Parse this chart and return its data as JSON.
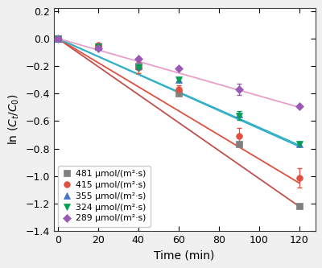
{
  "title": "",
  "xlabel": "Time (min)",
  "ylabel": "ln ($C_t$/$C_0$)",
  "xlim": [
    -2,
    128
  ],
  "ylim": [
    -1.4,
    0.22
  ],
  "xticks": [
    0,
    20,
    40,
    60,
    80,
    100,
    120
  ],
  "yticks": [
    0.2,
    0.0,
    -0.2,
    -0.4,
    -0.6,
    -0.8,
    -1.0,
    -1.2,
    -1.4
  ],
  "series": [
    {
      "label": "481 μmol/(m²·s)",
      "dot_color": "#808080",
      "line_color": "#c0504d",
      "marker": "s",
      "x": [
        0,
        20,
        40,
        60,
        90,
        120
      ],
      "y": [
        0.0,
        -0.06,
        -0.2,
        -0.4,
        -0.77,
        -1.22
      ],
      "yerr": [
        0.0,
        0.0,
        0.0,
        0.0,
        0.0,
        0.0
      ],
      "fit_x": [
        0,
        120
      ],
      "fit_y": [
        0.0,
        -1.22
      ]
    },
    {
      "label": "415 μmol/(m²·s)",
      "dot_color": "#e05040",
      "line_color": "#e05040",
      "marker": "o",
      "x": [
        0,
        20,
        40,
        60,
        90,
        120
      ],
      "y": [
        0.0,
        -0.05,
        -0.21,
        -0.37,
        -0.71,
        -1.01
      ],
      "yerr": [
        0.0,
        0.0,
        0.04,
        0.03,
        0.06,
        0.07
      ],
      "fit_x": [
        0,
        120
      ],
      "fit_y": [
        0.0,
        -1.05
      ]
    },
    {
      "label": "355 μmol/(m²·s)",
      "dot_color": "#4472c4",
      "line_color": "#31b0c8",
      "marker": "^",
      "x": [
        0,
        20,
        40,
        60,
        90,
        120
      ],
      "y": [
        0.0,
        -0.06,
        -0.2,
        -0.3,
        -0.55,
        -0.77
      ],
      "yerr": [
        0.0,
        0.0,
        0.0,
        0.0,
        0.0,
        0.0
      ],
      "fit_x": [
        0,
        120
      ],
      "fit_y": [
        0.0,
        -0.785
      ]
    },
    {
      "label": "324 μmol/(m²·s)",
      "dot_color": "#00a050",
      "line_color": "#31b0c8",
      "marker": "v",
      "x": [
        0,
        20,
        40,
        60,
        90,
        120
      ],
      "y": [
        0.0,
        -0.06,
        -0.21,
        -0.3,
        -0.56,
        -0.77
      ],
      "yerr": [
        0.0,
        0.0,
        0.0,
        0.0,
        0.03,
        0.0
      ],
      "fit_x": [
        0,
        120
      ],
      "fit_y": [
        0.0,
        -0.775
      ]
    },
    {
      "label": "289 μmol/(m²·s)",
      "dot_color": "#9b59b6",
      "line_color": "#e8a0c8",
      "marker": "D",
      "x": [
        0,
        20,
        40,
        60,
        90,
        120
      ],
      "y": [
        0.0,
        -0.07,
        -0.15,
        -0.22,
        -0.37,
        -0.49
      ],
      "yerr": [
        0.0,
        0.0,
        0.0,
        0.0,
        0.04,
        0.0
      ],
      "fit_x": [
        0,
        120
      ],
      "fit_y": [
        0.0,
        -0.5
      ]
    }
  ],
  "figure_facecolor": "#f0f0f0",
  "axes_facecolor": "#ffffff"
}
